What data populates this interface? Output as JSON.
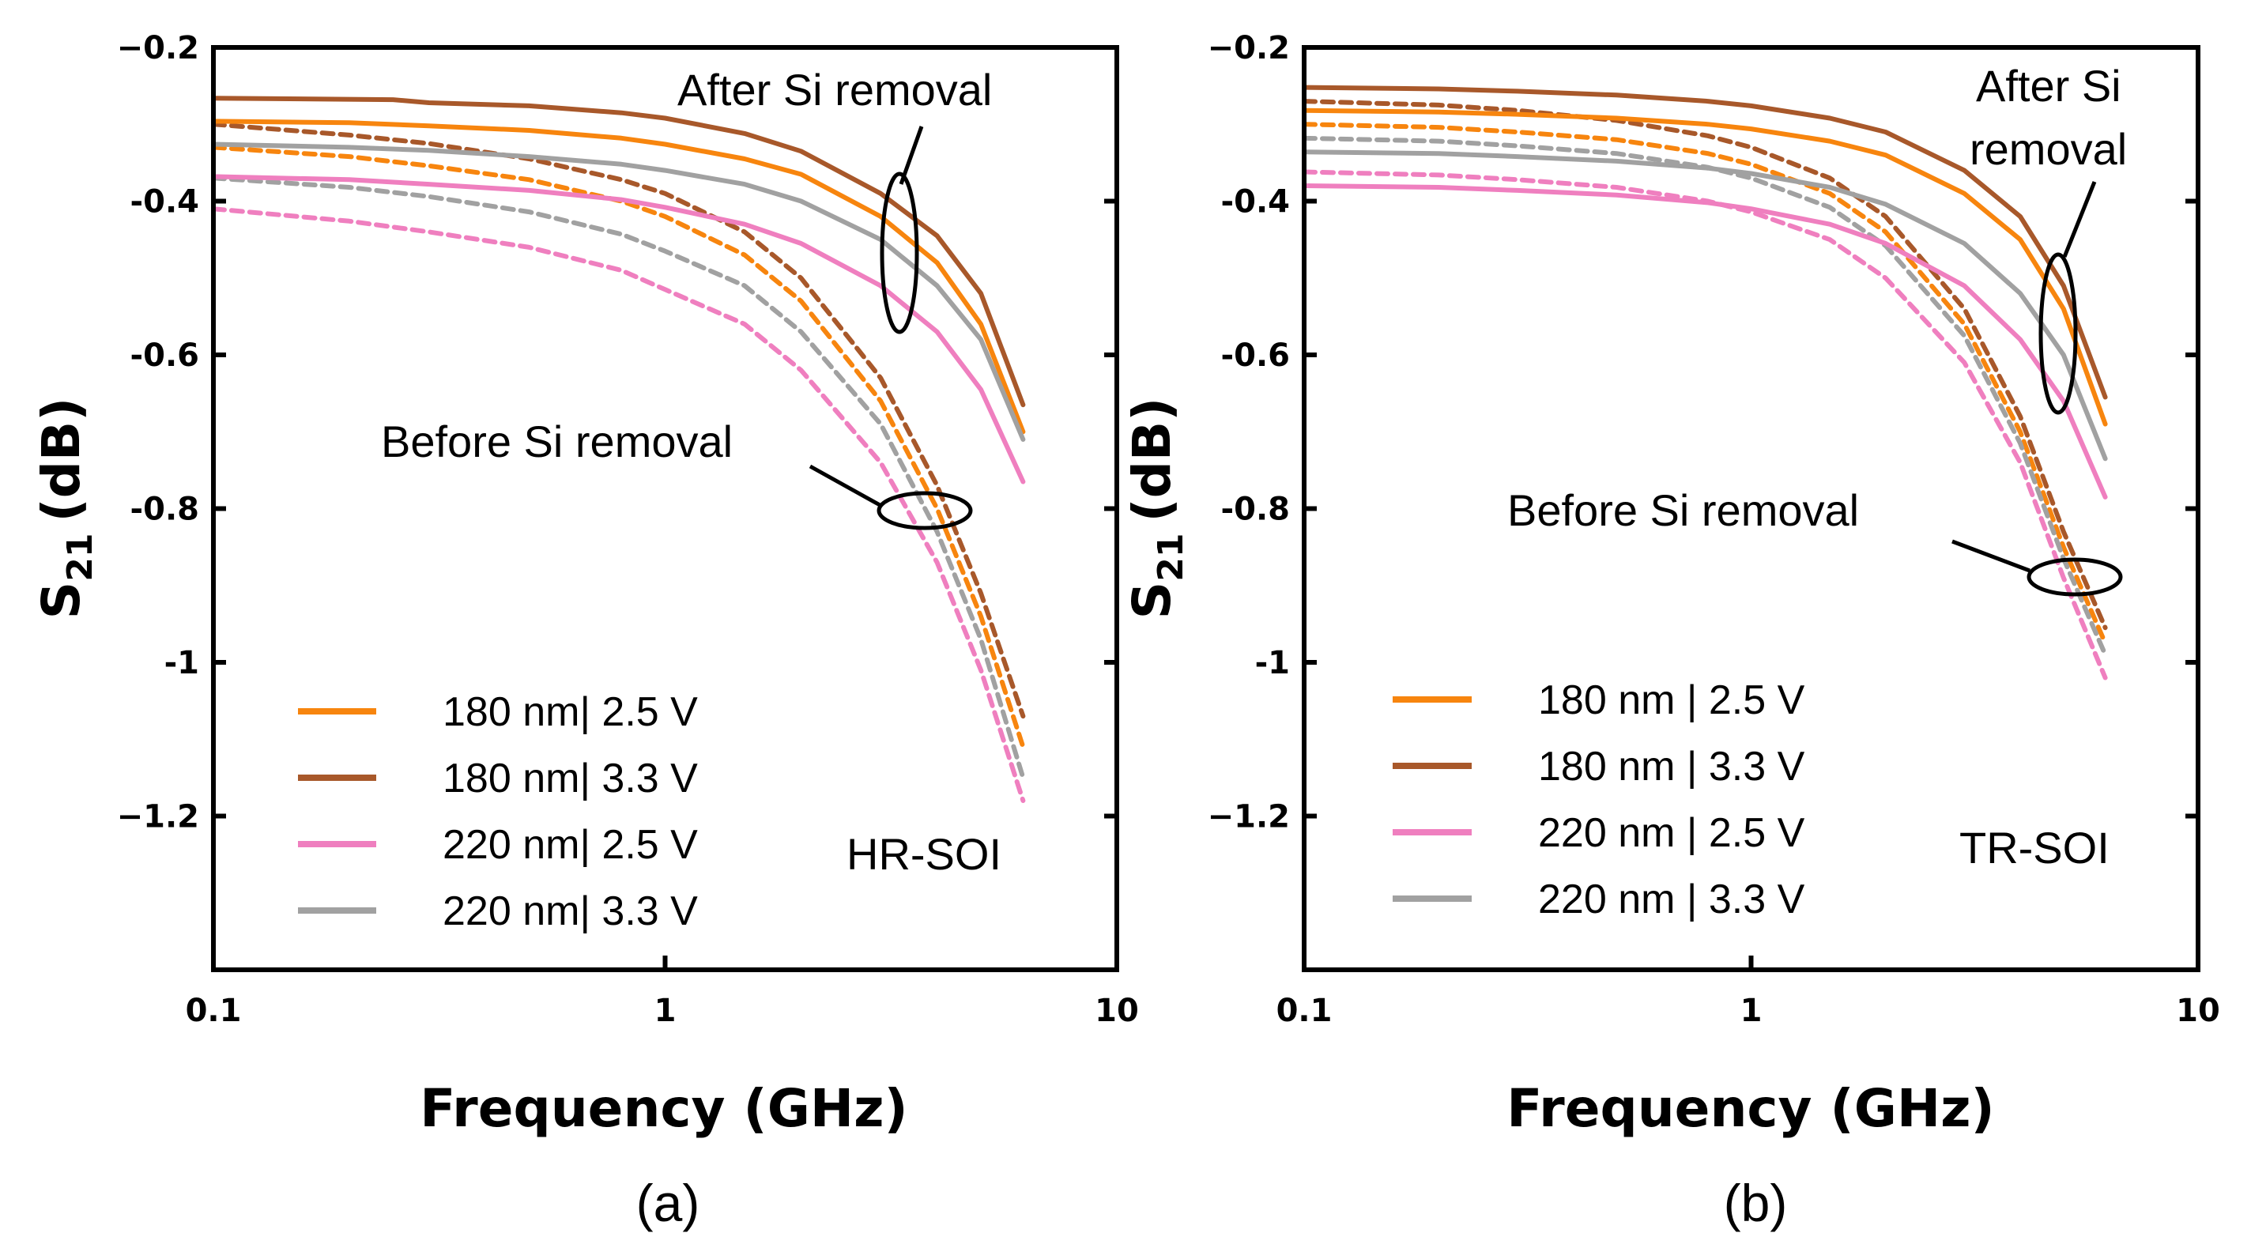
{
  "colors": {
    "s180_25": "#f7850e",
    "s180_33": "#a8582a",
    "s220_25": "#ef7fbf",
    "s220_33": "#a1a1a1",
    "axis": "#000000"
  },
  "chart_data": [
    {
      "type": "line",
      "panel_label": "(a)",
      "substrate_label": "HR-SOI",
      "xlabel": "Frequency (GHz)",
      "ylabel_main": "S",
      "ylabel_sub": "21",
      "ylabel_unit": "(dB)",
      "xscale": "log",
      "xlim": [
        0.1,
        10
      ],
      "ylim": [
        -1.4,
        -0.2
      ],
      "xticks": [
        0.1,
        1,
        10
      ],
      "xtick_labels": [
        "0.1",
        "1",
        "10"
      ],
      "yticks": [
        -0.2,
        -0.4,
        -0.6,
        -0.8,
        -1,
        -1.2
      ],
      "ytick_labels": [
        "−0.2",
        "-0.4",
        "-0.6",
        "-0.8",
        "-1",
        "−1.2"
      ],
      "annotations": [
        {
          "text": "After Si removal",
          "target": "after"
        },
        {
          "text": "Before Si removal",
          "target": "before"
        }
      ],
      "legend": {
        "placement": "bottom-left",
        "entries": [
          {
            "label": "180 nm| 2.5 V",
            "color_key": "s180_25"
          },
          {
            "label": "180 nm| 3.3 V",
            "color_key": "s180_33"
          },
          {
            "label": "220 nm| 2.5 V",
            "color_key": "s220_25"
          },
          {
            "label": "220 nm| 3.3 V",
            "color_key": "s220_33"
          }
        ]
      },
      "series": [
        {
          "name": "180 nm| 2.5 V after Si removal",
          "color_key": "s180_25",
          "dashed": false,
          "x": [
            0.1,
            0.2,
            0.3,
            0.5,
            0.8,
            1,
            1.5,
            2,
            3,
            4,
            5,
            6.2
          ],
          "y": [
            -0.296,
            -0.298,
            -0.302,
            -0.308,
            -0.318,
            -0.326,
            -0.345,
            -0.365,
            -0.42,
            -0.48,
            -0.56,
            -0.7
          ]
        },
        {
          "name": "180 nm| 3.3 V after Si removal",
          "color_key": "s180_33",
          "dashed": false,
          "x": [
            0.1,
            0.25,
            0.3,
            0.5,
            0.8,
            1,
            1.5,
            2,
            3,
            4,
            5,
            6.2
          ],
          "y": [
            -0.266,
            -0.268,
            -0.272,
            -0.276,
            -0.285,
            -0.292,
            -0.312,
            -0.335,
            -0.39,
            -0.445,
            -0.52,
            -0.665
          ]
        },
        {
          "name": "220 nm| 2.5 V after Si removal",
          "color_key": "s220_25",
          "dashed": false,
          "x": [
            0.1,
            0.2,
            0.3,
            0.5,
            0.8,
            1,
            1.5,
            2,
            3,
            4,
            5,
            6.2
          ],
          "y": [
            -0.368,
            -0.372,
            -0.378,
            -0.386,
            -0.398,
            -0.408,
            -0.43,
            -0.455,
            -0.51,
            -0.57,
            -0.645,
            -0.765
          ]
        },
        {
          "name": "220 nm| 3.3 V after Si removal",
          "color_key": "s220_33",
          "dashed": false,
          "x": [
            0.1,
            0.2,
            0.3,
            0.5,
            0.8,
            1,
            1.5,
            2,
            3,
            4,
            5,
            6.2
          ],
          "y": [
            -0.326,
            -0.33,
            -0.334,
            -0.342,
            -0.352,
            -0.36,
            -0.378,
            -0.4,
            -0.45,
            -0.51,
            -0.58,
            -0.71
          ]
        },
        {
          "name": "180 nm| 2.5 V before Si removal",
          "color_key": "s180_25",
          "dashed": true,
          "x": [
            0.1,
            0.2,
            0.3,
            0.5,
            0.8,
            1,
            1.5,
            2,
            3,
            4,
            5,
            6.2
          ],
          "y": [
            -0.33,
            -0.342,
            -0.354,
            -0.372,
            -0.4,
            -0.42,
            -0.47,
            -0.53,
            -0.66,
            -0.8,
            -0.94,
            -1.11
          ]
        },
        {
          "name": "180 nm| 3.3 V before Si removal",
          "color_key": "s180_33",
          "dashed": true,
          "x": [
            0.1,
            0.2,
            0.3,
            0.5,
            0.8,
            1,
            1.5,
            2,
            3,
            4,
            5,
            6.2
          ],
          "y": [
            -0.3,
            -0.314,
            -0.325,
            -0.345,
            -0.372,
            -0.39,
            -0.44,
            -0.5,
            -0.63,
            -0.77,
            -0.91,
            -1.07
          ]
        },
        {
          "name": "220 nm| 2.5 V before Si removal",
          "color_key": "s220_25",
          "dashed": true,
          "x": [
            0.1,
            0.2,
            0.3,
            0.5,
            0.8,
            1,
            1.5,
            2,
            3,
            4,
            5,
            6.2
          ],
          "y": [
            -0.41,
            -0.426,
            -0.44,
            -0.46,
            -0.49,
            -0.515,
            -0.56,
            -0.62,
            -0.74,
            -0.87,
            -1.01,
            -1.18
          ]
        },
        {
          "name": "220 nm| 3.3 V before Si removal",
          "color_key": "s220_33",
          "dashed": true,
          "x": [
            0.1,
            0.2,
            0.3,
            0.5,
            0.8,
            1,
            1.5,
            2,
            3,
            4,
            5,
            6.2
          ],
          "y": [
            -0.37,
            -0.382,
            -0.394,
            -0.414,
            -0.443,
            -0.465,
            -0.51,
            -0.57,
            -0.69,
            -0.83,
            -0.97,
            -1.15
          ]
        }
      ]
    },
    {
      "type": "line",
      "panel_label": "(b)",
      "substrate_label": "TR-SOI",
      "xlabel": "Frequency (GHz)",
      "ylabel_main": "S",
      "ylabel_sub": "21",
      "ylabel_unit": "(dB)",
      "xscale": "log",
      "xlim": [
        0.1,
        10
      ],
      "ylim": [
        -1.4,
        -0.2
      ],
      "xticks": [
        0.1,
        1,
        10
      ],
      "xtick_labels": [
        "0.1",
        "1",
        "10"
      ],
      "yticks": [
        -0.2,
        -0.4,
        -0.6,
        -0.8,
        -1,
        -1.2
      ],
      "ytick_labels": [
        "−0.2",
        "-0.4",
        "-0.6",
        "-0.8",
        "-1",
        "−1.2"
      ],
      "annotations": [
        {
          "text": "After Si",
          "text2": "removal",
          "target": "after"
        },
        {
          "text": "Before Si removal",
          "target": "before"
        }
      ],
      "legend": {
        "placement": "bottom-left",
        "entries": [
          {
            "label": "180 nm | 2.5 V",
            "color_key": "s180_25"
          },
          {
            "label": "180 nm | 3.3 V",
            "color_key": "s180_33"
          },
          {
            "label": "220 nm | 2.5 V",
            "color_key": "s220_25"
          },
          {
            "label": "220 nm | 3.3 V",
            "color_key": "s220_33"
          }
        ]
      },
      "series": [
        {
          "name": "180 nm | 2.5 V after Si removal",
          "color_key": "s180_25",
          "dashed": false,
          "x": [
            0.1,
            0.2,
            0.3,
            0.5,
            0.8,
            1,
            1.5,
            2,
            3,
            4,
            5,
            6.2
          ],
          "y": [
            -0.282,
            -0.284,
            -0.287,
            -0.292,
            -0.3,
            -0.306,
            -0.322,
            -0.34,
            -0.39,
            -0.45,
            -0.54,
            -0.69
          ]
        },
        {
          "name": "180 nm | 3.3 V after Si removal",
          "color_key": "s180_33",
          "dashed": false,
          "x": [
            0.1,
            0.2,
            0.3,
            0.5,
            0.8,
            1,
            1.5,
            2,
            3,
            4,
            5,
            6.2
          ],
          "y": [
            -0.252,
            -0.254,
            -0.257,
            -0.262,
            -0.27,
            -0.276,
            -0.292,
            -0.31,
            -0.36,
            -0.42,
            -0.51,
            -0.655
          ]
        },
        {
          "name": "220 nm | 2.5 V after Si removal",
          "color_key": "s220_25",
          "dashed": false,
          "x": [
            0.1,
            0.2,
            0.3,
            0.5,
            0.8,
            1,
            1.5,
            2,
            3,
            4,
            5,
            6.2
          ],
          "y": [
            -0.38,
            -0.382,
            -0.386,
            -0.392,
            -0.402,
            -0.41,
            -0.43,
            -0.455,
            -0.51,
            -0.58,
            -0.66,
            -0.785
          ]
        },
        {
          "name": "220 nm | 3.3 V after Si removal",
          "color_key": "s220_33",
          "dashed": false,
          "x": [
            0.1,
            0.2,
            0.3,
            0.5,
            0.8,
            1,
            1.5,
            2,
            3,
            4,
            5,
            6.2
          ],
          "y": [
            -0.336,
            -0.338,
            -0.342,
            -0.348,
            -0.357,
            -0.364,
            -0.382,
            -0.404,
            -0.455,
            -0.52,
            -0.6,
            -0.735
          ]
        },
        {
          "name": "180 nm | 2.5 V before Si removal",
          "color_key": "s180_25",
          "dashed": true,
          "x": [
            0.1,
            0.2,
            0.3,
            0.5,
            0.8,
            1,
            1.5,
            2,
            3,
            4,
            5,
            6.2
          ],
          "y": [
            -0.3,
            -0.304,
            -0.31,
            -0.32,
            -0.338,
            -0.352,
            -0.39,
            -0.44,
            -0.56,
            -0.7,
            -0.85,
            -0.975
          ]
        },
        {
          "name": "180 nm | 3.3 V before Si removal",
          "color_key": "s180_33",
          "dashed": true,
          "x": [
            0.1,
            0.2,
            0.3,
            0.5,
            0.8,
            1,
            1.5,
            2,
            3,
            4,
            5,
            6.2
          ],
          "y": [
            -0.27,
            -0.275,
            -0.282,
            -0.295,
            -0.315,
            -0.33,
            -0.37,
            -0.42,
            -0.54,
            -0.68,
            -0.83,
            -0.955
          ]
        },
        {
          "name": "220 nm | 2.5 V before Si removal",
          "color_key": "s220_25",
          "dashed": true,
          "x": [
            0.1,
            0.2,
            0.3,
            0.5,
            0.8,
            1,
            1.5,
            2,
            3,
            4,
            5,
            6.2
          ],
          "y": [
            -0.362,
            -0.366,
            -0.372,
            -0.382,
            -0.4,
            -0.414,
            -0.45,
            -0.5,
            -0.61,
            -0.74,
            -0.89,
            -1.02
          ]
        },
        {
          "name": "220 nm | 3.3 V before Si removal",
          "color_key": "s220_33",
          "dashed": true,
          "x": [
            0.1,
            0.2,
            0.3,
            0.5,
            0.8,
            1,
            1.5,
            2,
            3,
            4,
            5,
            6.2
          ],
          "y": [
            -0.318,
            -0.322,
            -0.328,
            -0.338,
            -0.356,
            -0.37,
            -0.408,
            -0.458,
            -0.575,
            -0.715,
            -0.865,
            -0.99
          ]
        }
      ]
    }
  ]
}
